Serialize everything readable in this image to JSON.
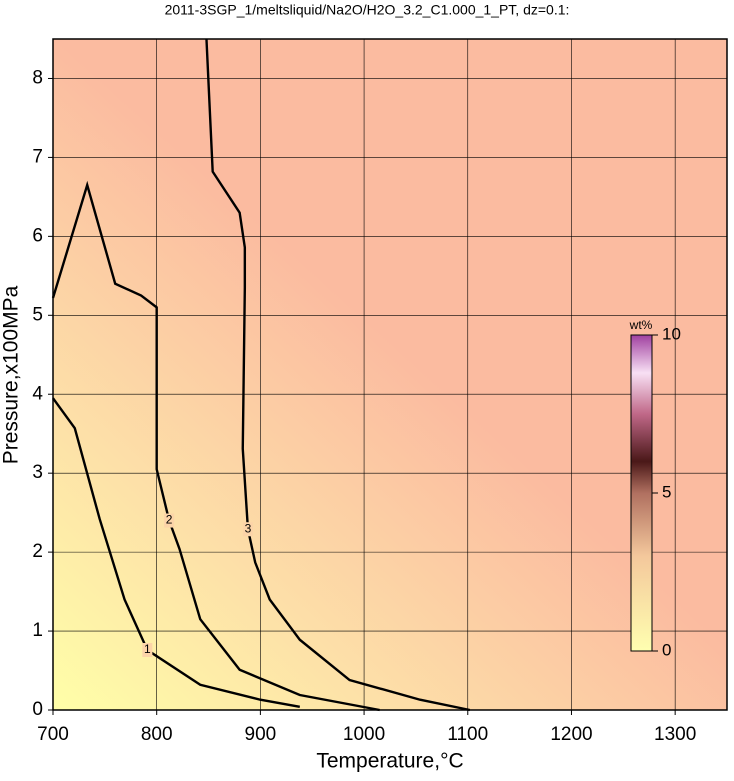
{
  "chart_data": {
    "type": "contour",
    "title": "2011-3SGP_1/meltsliquid/Na2O/H2O_3.2_C1.000_1_PT, dz=0.1:",
    "xlabel": "Temperature,°C",
    "ylabel": "Pressure,x100MPa",
    "xlim": [
      700,
      1350
    ],
    "ylim": [
      0,
      8.5
    ],
    "xticks": [
      700,
      800,
      900,
      1000,
      1100,
      1200,
      1300
    ],
    "yticks": [
      0,
      1,
      2,
      3,
      4,
      5,
      6,
      7,
      8
    ],
    "grid": true,
    "contours": [
      {
        "level": 1,
        "x": [
          700,
          721,
          745,
          769,
          791,
          842,
          900,
          938
        ],
        "y": [
          3.95,
          3.57,
          2.42,
          1.4,
          0.76,
          0.32,
          0.13,
          0.04
        ]
      },
      {
        "level": 2,
        "x": [
          700,
          733,
          760,
          785,
          800,
          800,
          812,
          822,
          842,
          880,
          938,
          1015
        ],
        "y": [
          5.22,
          6.65,
          5.4,
          5.25,
          5.1,
          3.05,
          2.4,
          2.04,
          1.15,
          0.51,
          0.19,
          0
        ]
      },
      {
        "level": 3,
        "x": [
          848,
          854,
          880,
          885,
          885,
          883,
          888,
          895,
          909,
          938,
          986,
          1054,
          1102
        ],
        "y": [
          8.5,
          6.82,
          6.3,
          5.86,
          5.35,
          3.31,
          2.29,
          1.87,
          1.4,
          0.89,
          0.38,
          0.13,
          0
        ]
      }
    ],
    "colorbar": {
      "label": "wt%",
      "lim": [
        0,
        10
      ],
      "ticks": [
        0,
        5,
        10
      ]
    }
  }
}
